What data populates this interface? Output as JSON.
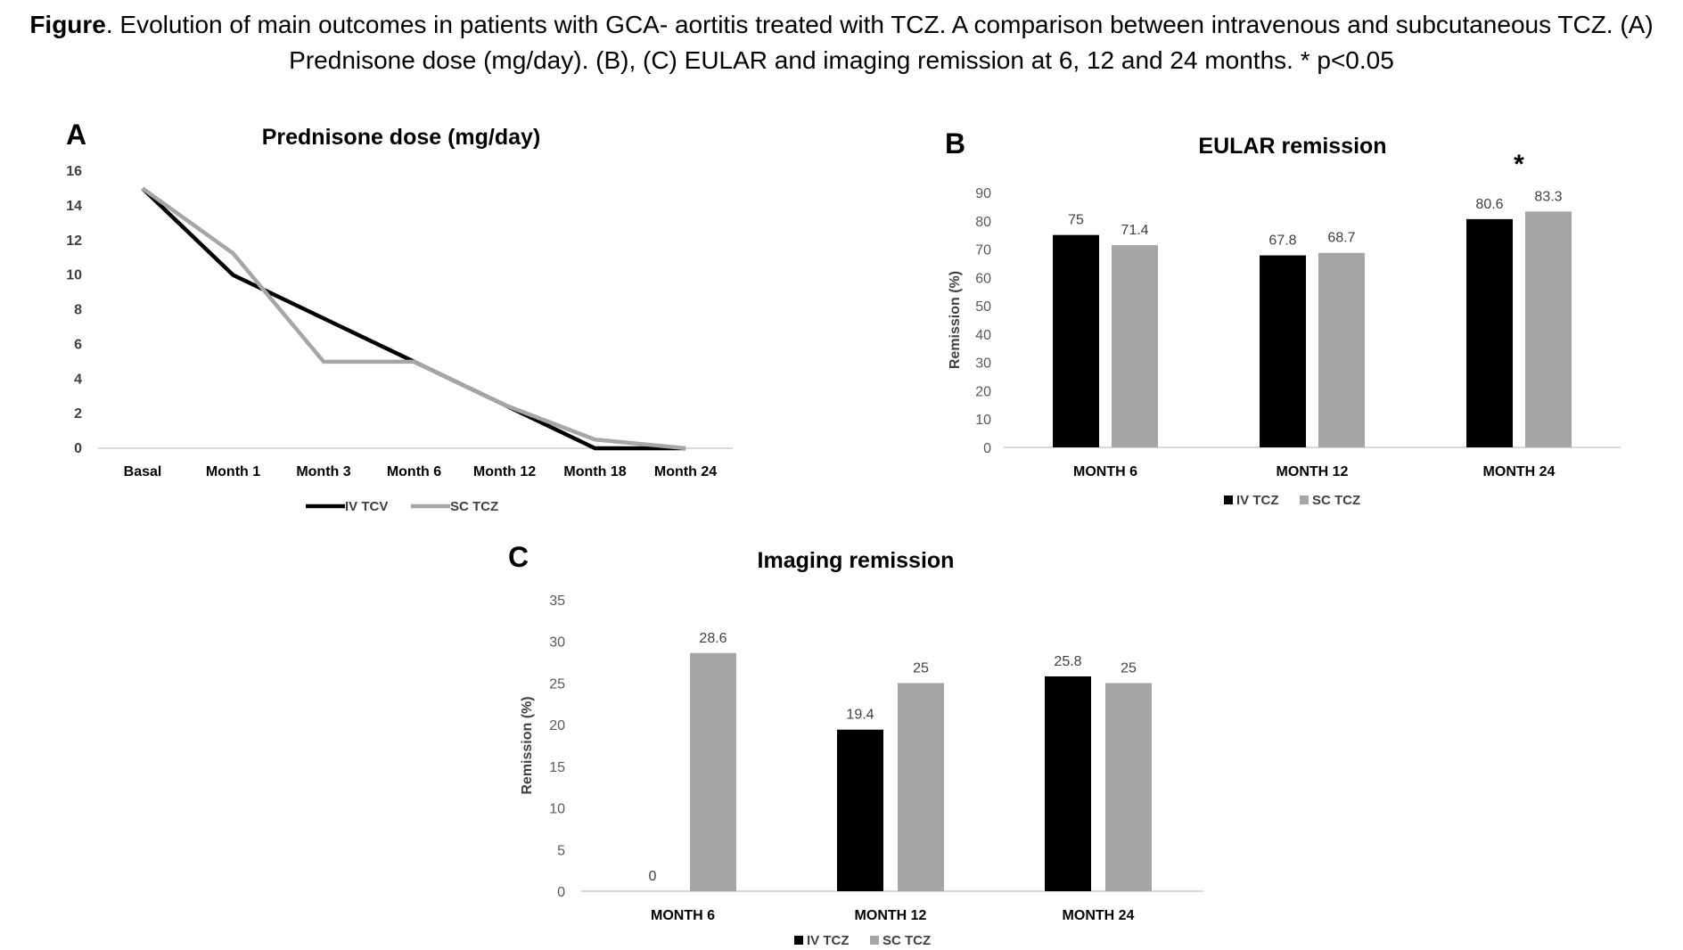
{
  "caption": {
    "bold": "Figure",
    "text": ". Evolution of main outcomes in patients with GCA- aortitis treated with TCZ. A comparison between intravenous and subcutaneous TCZ. (A) Prednisone dose (mg/day). (B), (C) EULAR and imaging remission at 6, 12 and 24 months. * p<0.05"
  },
  "colors": {
    "iv": "#000000",
    "sc": "#a6a6a6",
    "axis": "#d9d9d9"
  },
  "panels": {
    "a": {
      "letter": "A",
      "title": "Prednisone dose (mg/day)"
    },
    "b": {
      "letter": "B",
      "title": "EULAR remission"
    },
    "c": {
      "letter": "C",
      "title": "Imaging remission"
    }
  },
  "chart_data": [
    {
      "id": "A",
      "type": "line",
      "title": "Prednisone dose (mg/day)",
      "categories": [
        "Basal",
        "Month 1",
        "Month 3",
        "Month 6",
        "Month 12",
        "Month 18",
        "Month 24"
      ],
      "series": [
        {
          "name": "IV TCV",
          "color": "#000000",
          "values": [
            15,
            10,
            7.5,
            5,
            2.5,
            0,
            0
          ]
        },
        {
          "name": "SC TCZ",
          "color": "#a6a6a6",
          "values": [
            15,
            11.25,
            5,
            5,
            2.5,
            0.5,
            0
          ]
        }
      ],
      "ylim": [
        0,
        16
      ],
      "yticks": [
        0,
        2,
        4,
        6,
        8,
        10,
        12,
        14,
        16
      ],
      "legend": "bottom"
    },
    {
      "id": "B",
      "type": "bar",
      "title": "EULAR remission",
      "ylabel": "Remission (%)",
      "categories": [
        "MONTH 6",
        "MONTH 12",
        "MONTH 24"
      ],
      "series": [
        {
          "name": "IV TCZ",
          "color": "#000000",
          "values": [
            75,
            67.8,
            80.6
          ],
          "labels": [
            "75",
            "67.8",
            "80.6"
          ]
        },
        {
          "name": "SC TCZ",
          "color": "#a6a6a6",
          "values": [
            71.4,
            68.7,
            83.3
          ],
          "labels": [
            "71.4",
            "68.7",
            "83.3"
          ]
        }
      ],
      "ylim": [
        0,
        90
      ],
      "yticks": [
        0,
        10,
        20,
        30,
        40,
        50,
        60,
        70,
        80,
        90
      ],
      "annotations": [
        {
          "category": "MONTH 24",
          "text": "*"
        }
      ],
      "legend": "bottom"
    },
    {
      "id": "C",
      "type": "bar",
      "title": "Imaging remission",
      "ylabel": "Remission (%)",
      "categories": [
        "MONTH 6",
        "MONTH 12",
        "MONTH 24"
      ],
      "series": [
        {
          "name": "IV TCZ",
          "color": "#000000",
          "values": [
            0,
            19.4,
            25.8
          ],
          "labels": [
            "0",
            "19.4",
            "25.8"
          ]
        },
        {
          "name": "SC TCZ",
          "color": "#a6a6a6",
          "values": [
            28.6,
            25,
            25
          ],
          "labels": [
            "28.6",
            "25",
            "25"
          ]
        }
      ],
      "ylim": [
        0,
        35
      ],
      "yticks": [
        0,
        5,
        10,
        15,
        20,
        25,
        30,
        35
      ],
      "legend": "bottom"
    }
  ]
}
